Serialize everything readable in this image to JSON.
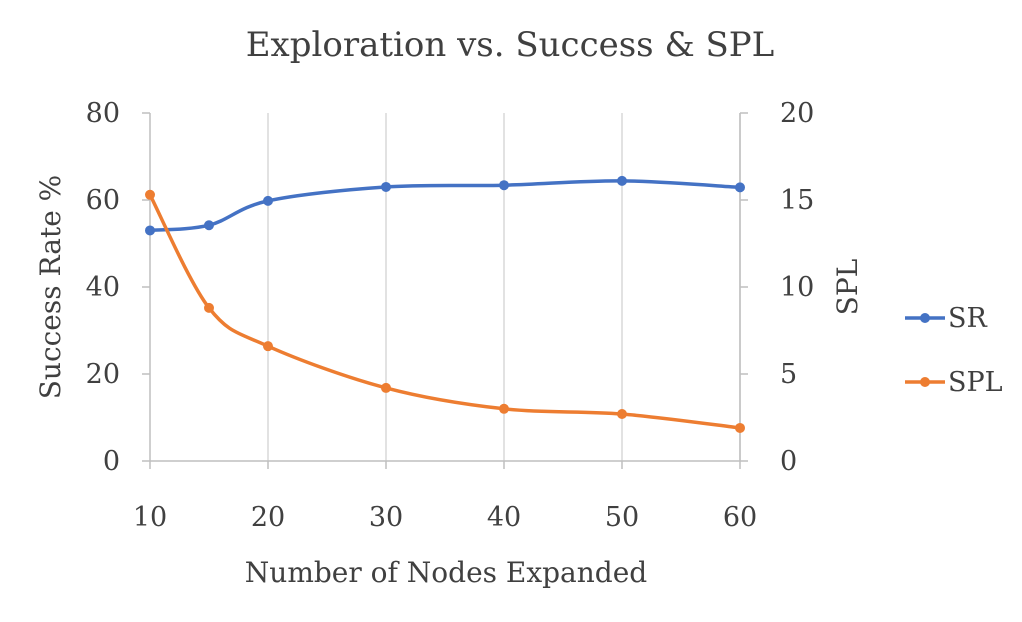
{
  "chart_data": {
    "type": "line",
    "title": "Exploration vs. Success & SPL",
    "xlabel": "Number of Nodes Expanded",
    "ylabel_left": "Success Rate %",
    "ylabel_right": "SPL",
    "x": [
      10,
      15,
      20,
      30,
      40,
      50,
      60
    ],
    "x_ticks": [
      10,
      20,
      30,
      40,
      50,
      60
    ],
    "xlim": [
      10,
      60
    ],
    "ylim_left": [
      0,
      80
    ],
    "yticks_left": [
      0,
      20,
      40,
      60,
      80
    ],
    "ylim_right": [
      0,
      20
    ],
    "yticks_right": [
      0,
      5,
      10,
      15,
      20
    ],
    "grid": "vertical",
    "legend_position": "right",
    "series": [
      {
        "name": "SR",
        "axis": "left",
        "color": "#4472C4",
        "values": [
          53,
          54.2,
          59.8,
          63,
          63.4,
          64.4,
          62.9
        ]
      },
      {
        "name": "SPL",
        "axis": "right",
        "color": "#ED7D31",
        "values": [
          15.3,
          8.8,
          6.6,
          4.2,
          3.0,
          2.7,
          1.9
        ]
      }
    ]
  }
}
